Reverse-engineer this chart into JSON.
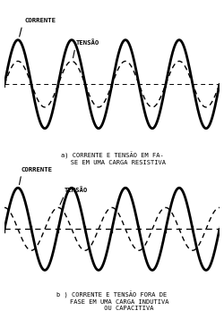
{
  "fig_width": 2.5,
  "fig_height": 3.57,
  "dpi": 100,
  "bg_color": "#ffffff",
  "text_color": "#000000",
  "panel_a": {
    "corrente_amplitude": 1.0,
    "tensao_amplitude": 0.52,
    "phase_shift": 0.0,
    "freq": 2.0,
    "label_corrente": "CORRENTE",
    "label_tensao": "TENSÃO",
    "caption_line1": "a) CORRENTE E TENSÃO EM FA-",
    "caption_line2": "   SE EM UMA CARGA RESISTIVA"
  },
  "panel_b": {
    "corrente_amplitude": 1.0,
    "tensao_amplitude": 0.52,
    "phase_shift": 1.5707963267948966,
    "freq": 2.0,
    "label_corrente": "CORRENTE",
    "label_tensao": "TENSÃO",
    "caption_line1": "b ) CORRENTE E TENSÃO FORA DE",
    "caption_line2": "    FASE EM UMA CARGA INDUTIVA",
    "caption_line3": "         OU CAPACITIVA"
  }
}
